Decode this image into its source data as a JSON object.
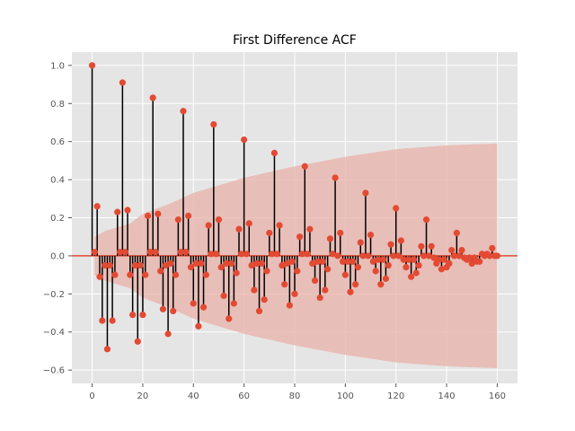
{
  "chart_data": {
    "type": "scatter",
    "title": "First Difference ACF",
    "xlabel": "",
    "ylabel": "",
    "xlim": [
      -8,
      168
    ],
    "ylim": [
      -0.67,
      1.07
    ],
    "xticks": [
      0,
      20,
      40,
      60,
      80,
      100,
      120,
      140,
      160
    ],
    "xtick_labels": [
      "0",
      "20",
      "40",
      "60",
      "80",
      "100",
      "120",
      "140",
      "160"
    ],
    "yticks": [
      -0.6,
      -0.4,
      -0.2,
      0.0,
      0.2,
      0.4,
      0.6,
      0.8,
      1.0
    ],
    "ytick_labels": [
      "−0.6",
      "−0.4",
      "−0.2",
      "0.0",
      "0.2",
      "0.4",
      "0.6",
      "0.8",
      "1.0"
    ],
    "grid": true,
    "legend": "none",
    "colors": {
      "background": "#e5e5e5",
      "grid": "#ffffff",
      "marker": "#e24a33",
      "stem": "#000000",
      "confidence_band": "#e8b0a8",
      "zero_line": "#e24a33"
    },
    "lags": [
      0,
      1,
      2,
      3,
      4,
      5,
      6,
      7,
      8,
      9,
      10,
      11,
      12,
      13,
      14,
      15,
      16,
      17,
      18,
      19,
      20,
      21,
      22,
      23,
      24,
      25,
      26,
      27,
      28,
      29,
      30,
      31,
      32,
      33,
      34,
      35,
      36,
      37,
      38,
      39,
      40,
      41,
      42,
      43,
      44,
      45,
      46,
      47,
      48,
      49,
      50,
      51,
      52,
      53,
      54,
      55,
      56,
      57,
      58,
      59,
      60,
      61,
      62,
      63,
      64,
      65,
      66,
      67,
      68,
      69,
      70,
      71,
      72,
      73,
      74,
      75,
      76,
      77,
      78,
      79,
      80,
      81,
      82,
      83,
      84,
      85,
      86,
      87,
      88,
      89,
      90,
      91,
      92,
      93,
      94,
      95,
      96,
      97,
      98,
      99,
      100,
      101,
      102,
      103,
      104,
      105,
      106,
      107,
      108,
      109,
      110,
      111,
      112,
      113,
      114,
      115,
      116,
      117,
      118,
      119,
      120,
      121,
      122,
      123,
      124,
      125,
      126,
      127,
      128,
      129,
      130,
      131,
      132,
      133,
      134,
      135,
      136,
      137,
      138,
      139,
      140,
      141,
      142,
      143,
      144,
      145,
      146,
      147,
      148,
      149,
      150,
      151,
      152,
      153,
      154,
      155,
      156,
      157,
      158,
      159,
      160
    ],
    "acf": [
      1.0,
      0.02,
      0.26,
      -0.11,
      -0.34,
      -0.05,
      -0.49,
      -0.05,
      -0.34,
      -0.1,
      0.23,
      0.02,
      0.91,
      0.02,
      0.24,
      -0.1,
      -0.31,
      -0.05,
      -0.45,
      -0.05,
      -0.31,
      -0.1,
      0.21,
      0.02,
      0.83,
      0.02,
      0.22,
      -0.08,
      -0.28,
      -0.05,
      -0.41,
      -0.04,
      -0.29,
      -0.1,
      0.19,
      0.02,
      0.76,
      0.02,
      0.21,
      -0.06,
      -0.25,
      -0.04,
      -0.37,
      -0.04,
      -0.27,
      -0.1,
      0.16,
      0.01,
      0.69,
      0.01,
      0.19,
      -0.06,
      -0.21,
      -0.04,
      -0.33,
      -0.04,
      -0.25,
      -0.09,
      0.14,
      0.01,
      0.61,
      0.01,
      0.17,
      -0.05,
      -0.18,
      -0.04,
      -0.29,
      -0.04,
      -0.23,
      -0.08,
      0.12,
      0.01,
      0.54,
      0.01,
      0.16,
      -0.05,
      -0.15,
      -0.04,
      -0.26,
      -0.03,
      -0.2,
      -0.08,
      0.1,
      0.01,
      0.47,
      0.01,
      0.14,
      -0.04,
      -0.13,
      -0.03,
      -0.22,
      -0.03,
      -0.18,
      -0.07,
      0.09,
      0.01,
      0.41,
      0.0,
      0.12,
      -0.03,
      -0.1,
      -0.03,
      -0.19,
      -0.03,
      -0.15,
      -0.06,
      0.07,
      0.0,
      0.33,
      0.0,
      0.11,
      -0.03,
      -0.08,
      -0.02,
      -0.15,
      -0.02,
      -0.12,
      -0.05,
      0.06,
      0.0,
      0.25,
      0.0,
      0.08,
      -0.02,
      -0.06,
      -0.02,
      -0.11,
      -0.02,
      -0.09,
      -0.05,
      0.05,
      0.0,
      0.19,
      0.0,
      0.05,
      -0.01,
      -0.04,
      -0.02,
      -0.07,
      -0.02,
      -0.06,
      -0.04,
      0.03,
      0.0,
      0.12,
      0.0,
      0.03,
      -0.01,
      -0.02,
      -0.01,
      -0.04,
      -0.01,
      -0.03,
      -0.03,
      0.01,
      0.0,
      0.01,
      0.0,
      0.04,
      0.0,
      0.0,
      0.0,
      0.01,
      0.0,
      0.0,
      -0.01,
      0.0
    ],
    "confidence_band": {
      "lags": [
        1,
        5,
        10,
        15,
        20,
        30,
        40,
        60,
        80,
        100,
        120,
        140,
        160
      ],
      "upper": [
        0.1,
        0.13,
        0.15,
        0.17,
        0.22,
        0.27,
        0.33,
        0.41,
        0.47,
        0.52,
        0.56,
        0.58,
        0.59
      ],
      "lower": [
        -0.1,
        -0.13,
        -0.15,
        -0.17,
        -0.22,
        -0.27,
        -0.33,
        -0.41,
        -0.47,
        -0.52,
        -0.56,
        -0.58,
        -0.59
      ]
    }
  }
}
